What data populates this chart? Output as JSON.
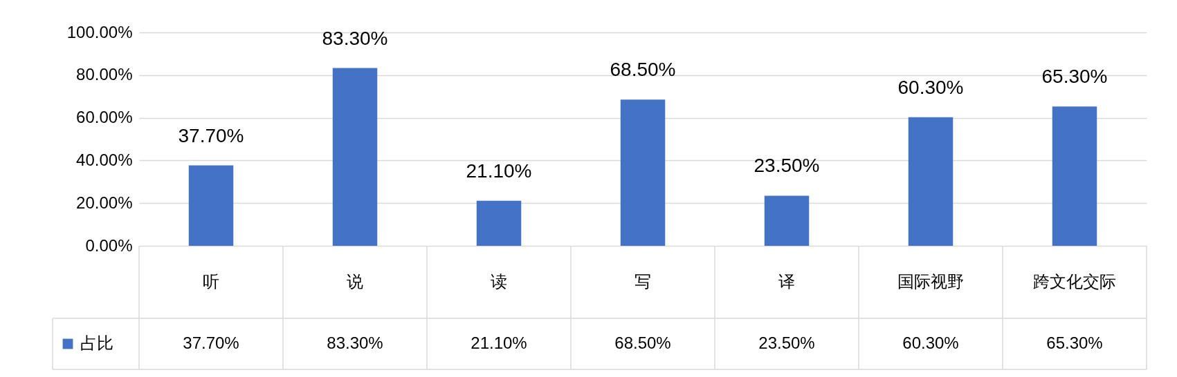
{
  "chart_data": {
    "type": "bar",
    "categories": [
      "听",
      "说",
      "读",
      "写",
      "译",
      "国际视野",
      "跨文化交际"
    ],
    "series": [
      {
        "name": "占比",
        "color": "#4472c4",
        "values": [
          37.7,
          83.3,
          21.1,
          68.5,
          23.5,
          60.3,
          65.3
        ],
        "value_labels": [
          "37.70%",
          "83.30%",
          "21.10%",
          "68.50%",
          "23.50%",
          "60.30%",
          "65.30%"
        ]
      }
    ],
    "ylim": [
      0,
      100
    ],
    "yticks": [
      {
        "value": 0,
        "label": "0.00%"
      },
      {
        "value": 20,
        "label": "20.00%"
      },
      {
        "value": 40,
        "label": "40.00%"
      },
      {
        "value": 60,
        "label": "60.00%"
      },
      {
        "value": 80,
        "label": "80.00%"
      },
      {
        "value": 100,
        "label": "100.00%"
      }
    ],
    "grid": true,
    "legend": "bottom"
  }
}
